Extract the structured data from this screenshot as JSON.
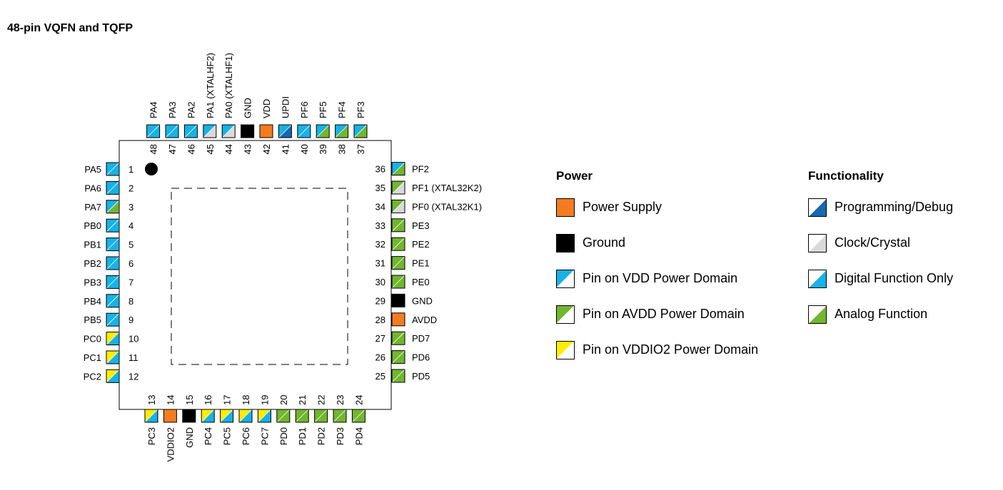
{
  "title": "48-pin VQFN and TQFP",
  "colors": {
    "vdd": "#17b2e6",
    "avdd": "#72b62f",
    "vddio2": "#ffee00",
    "power": "#f47c20",
    "ground": "#000000",
    "clock": "#d9d9d9",
    "programming": "#1668b0"
  },
  "pins": [
    {
      "n": "1",
      "name": "PA5",
      "pwr": "vdd",
      "func": "digital"
    },
    {
      "n": "2",
      "name": "PA6",
      "pwr": "vdd",
      "func": "digital"
    },
    {
      "n": "3",
      "name": "PA7",
      "pwr": "vdd",
      "func": "analog"
    },
    {
      "n": "4",
      "name": "PB0",
      "pwr": "vdd",
      "func": "digital"
    },
    {
      "n": "5",
      "name": "PB1",
      "pwr": "vdd",
      "func": "digital"
    },
    {
      "n": "6",
      "name": "PB2",
      "pwr": "vdd",
      "func": "digital"
    },
    {
      "n": "7",
      "name": "PB3",
      "pwr": "vdd",
      "func": "digital"
    },
    {
      "n": "8",
      "name": "PB4",
      "pwr": "vdd",
      "func": "digital"
    },
    {
      "n": "9",
      "name": "PB5",
      "pwr": "vdd",
      "func": "digital"
    },
    {
      "n": "10",
      "name": "PC0",
      "pwr": "vddio2",
      "func": "digital"
    },
    {
      "n": "11",
      "name": "PC1",
      "pwr": "vddio2",
      "func": "digital"
    },
    {
      "n": "12",
      "name": "PC2",
      "pwr": "vddio2",
      "func": "digital"
    },
    {
      "n": "13",
      "name": "PC3",
      "pwr": "vddio2",
      "func": "digital"
    },
    {
      "n": "14",
      "name": "VDDIO2",
      "pwr": "power",
      "func": "none"
    },
    {
      "n": "15",
      "name": "GND",
      "pwr": "ground",
      "func": "none"
    },
    {
      "n": "16",
      "name": "PC4",
      "pwr": "vddio2",
      "func": "digital"
    },
    {
      "n": "17",
      "name": "PC5",
      "pwr": "vddio2",
      "func": "digital"
    },
    {
      "n": "18",
      "name": "PC6",
      "pwr": "vddio2",
      "func": "digital"
    },
    {
      "n": "19",
      "name": "PC7",
      "pwr": "vddio2",
      "func": "digital"
    },
    {
      "n": "20",
      "name": "PD0",
      "pwr": "avdd",
      "func": "analog"
    },
    {
      "n": "21",
      "name": "PD1",
      "pwr": "avdd",
      "func": "analog"
    },
    {
      "n": "22",
      "name": "PD2",
      "pwr": "avdd",
      "func": "analog"
    },
    {
      "n": "23",
      "name": "PD3",
      "pwr": "avdd",
      "func": "analog"
    },
    {
      "n": "24",
      "name": "PD4",
      "pwr": "avdd",
      "func": "analog"
    },
    {
      "n": "25",
      "name": "PD5",
      "pwr": "avdd",
      "func": "analog"
    },
    {
      "n": "26",
      "name": "PD6",
      "pwr": "avdd",
      "func": "analog"
    },
    {
      "n": "27",
      "name": "PD7",
      "pwr": "avdd",
      "func": "analog"
    },
    {
      "n": "28",
      "name": "AVDD",
      "pwr": "power",
      "func": "none"
    },
    {
      "n": "29",
      "name": "GND",
      "pwr": "ground",
      "func": "none"
    },
    {
      "n": "30",
      "name": "PE0",
      "pwr": "avdd",
      "func": "analog"
    },
    {
      "n": "31",
      "name": "PE1",
      "pwr": "avdd",
      "func": "analog"
    },
    {
      "n": "32",
      "name": "PE2",
      "pwr": "avdd",
      "func": "analog"
    },
    {
      "n": "33",
      "name": "PE3",
      "pwr": "avdd",
      "func": "analog"
    },
    {
      "n": "34",
      "name": "PF0 (XTAL32K1)",
      "pwr": "avdd",
      "func": "clock"
    },
    {
      "n": "35",
      "name": "PF1 (XTAL32K2)",
      "pwr": "avdd",
      "func": "clock"
    },
    {
      "n": "36",
      "name": "PF2",
      "pwr": "vdd",
      "func": "analog"
    },
    {
      "n": "37",
      "name": "PF3",
      "pwr": "vdd",
      "func": "analog"
    },
    {
      "n": "38",
      "name": "PF4",
      "pwr": "vdd",
      "func": "analog"
    },
    {
      "n": "39",
      "name": "PF5",
      "pwr": "vdd",
      "func": "analog"
    },
    {
      "n": "40",
      "name": "PF6",
      "pwr": "vdd",
      "func": "digital"
    },
    {
      "n": "41",
      "name": "UPDI",
      "pwr": "vdd",
      "func": "programming"
    },
    {
      "n": "42",
      "name": "VDD",
      "pwr": "power",
      "func": "none"
    },
    {
      "n": "43",
      "name": "GND",
      "pwr": "ground",
      "func": "none"
    },
    {
      "n": "44",
      "name": "PA0 (XTALHF1)",
      "pwr": "vdd",
      "func": "clock"
    },
    {
      "n": "45",
      "name": "PA1 (XTALHF2)",
      "pwr": "vdd",
      "func": "clock"
    },
    {
      "n": "46",
      "name": "PA2",
      "pwr": "vdd",
      "func": "digital"
    },
    {
      "n": "47",
      "name": "PA3",
      "pwr": "vdd",
      "func": "digital"
    },
    {
      "n": "48",
      "name": "PA4",
      "pwr": "vdd",
      "func": "digital"
    }
  ],
  "legend": {
    "power": {
      "heading": "Power",
      "items": [
        {
          "label": "Power Supply",
          "pwr": "power",
          "func": "none"
        },
        {
          "label": "Ground",
          "pwr": "ground",
          "func": "none"
        },
        {
          "label": "Pin on VDD Power Domain",
          "pwr": "vdd",
          "func": "blank"
        },
        {
          "label": "Pin on AVDD Power Domain",
          "pwr": "avdd",
          "func": "blank"
        },
        {
          "label": "Pin on VDDIO2 Power Domain",
          "pwr": "vddio2",
          "func": "blank"
        }
      ]
    },
    "functionality": {
      "heading": "Functionality",
      "items": [
        {
          "label": "Programming/Debug",
          "pwr": "blank",
          "func": "programming"
        },
        {
          "label": "Clock/Crystal",
          "pwr": "blank",
          "func": "clock"
        },
        {
          "label": "Digital Function Only",
          "pwr": "blank",
          "func": "digital"
        },
        {
          "label": "Analog Function",
          "pwr": "blank",
          "func": "analog"
        }
      ]
    }
  }
}
